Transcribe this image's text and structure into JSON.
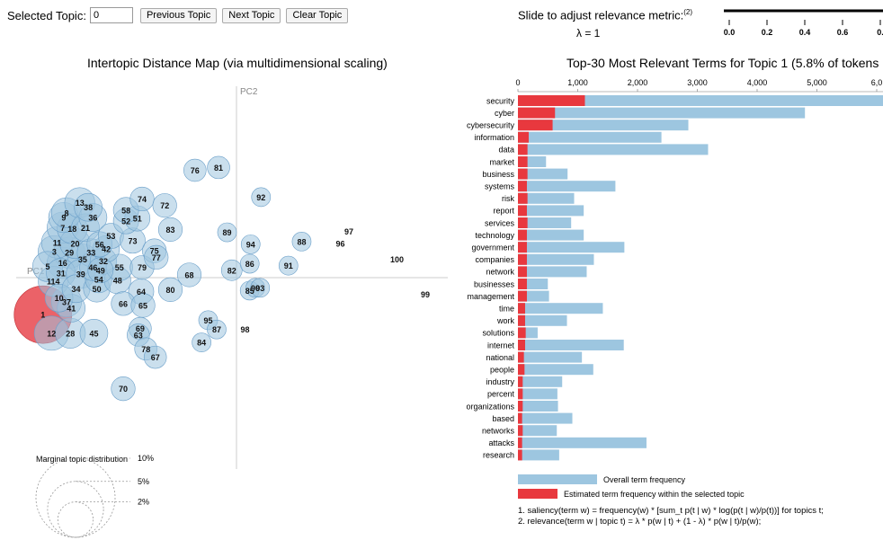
{
  "controls": {
    "selected_topic_label": "Selected Topic:",
    "selected_topic_value": "0",
    "prev_label": "Previous Topic",
    "next_label": "Next Topic",
    "clear_label": "Clear Topic"
  },
  "lambda": {
    "title": "Slide to adjust relevance metric:",
    "footnote_ref": "(2)",
    "value_label": "λ = 1",
    "value": 1,
    "ticks": [
      "0.0",
      "0.2",
      "0.4",
      "0.6",
      "0."
    ]
  },
  "colors": {
    "bubble_fill": "#9fc4df",
    "bubble_stroke": "#6a9fc9",
    "selected_fill": "#e8474d",
    "selected_stroke": "#c0272d",
    "overall_bar": "#9dc6e0",
    "topic_bar": "#e8383e"
  },
  "chart_data": [
    {
      "type": "scatter",
      "title": "Intertopic Distance Map (via multidimensional scaling)",
      "xlabel": "PC1",
      "ylabel": "PC2",
      "selected_topic": 1,
      "points": [
        {
          "id": "1",
          "x": -0.205,
          "y": -0.04,
          "size": 5.8
        },
        {
          "id": "12",
          "x": -0.196,
          "y": -0.06,
          "size": 1.6
        },
        {
          "id": "28",
          "x": -0.176,
          "y": -0.06,
          "size": 1.2
        },
        {
          "id": "45",
          "x": -0.151,
          "y": -0.06,
          "size": 1.0
        },
        {
          "id": "41",
          "x": -0.175,
          "y": -0.033,
          "size": 1.0
        },
        {
          "id": "37",
          "x": -0.18,
          "y": -0.026,
          "size": 1.2
        },
        {
          "id": "10",
          "x": -0.188,
          "y": -0.022,
          "size": 1.0
        },
        {
          "id": "50",
          "x": -0.148,
          "y": -0.012,
          "size": 0.9
        },
        {
          "id": "34",
          "x": -0.17,
          "y": -0.012,
          "size": 1.0
        },
        {
          "id": "114",
          "x": -0.194,
          "y": -0.004,
          "size": 1.2
        },
        {
          "id": "54",
          "x": -0.146,
          "y": -0.002,
          "size": 0.9
        },
        {
          "id": "48",
          "x": -0.126,
          "y": -0.003,
          "size": 0.9
        },
        {
          "id": "31",
          "x": -0.186,
          "y": 0.005,
          "size": 1.1
        },
        {
          "id": "39",
          "x": -0.165,
          "y": 0.004,
          "size": 1.1
        },
        {
          "id": "46",
          "x": -0.152,
          "y": 0.011,
          "size": 0.9
        },
        {
          "id": "49",
          "x": -0.144,
          "y": 0.008,
          "size": 0.8
        },
        {
          "id": "5",
          "x": -0.2,
          "y": 0.012,
          "size": 1.2
        },
        {
          "id": "16",
          "x": -0.184,
          "y": 0.016,
          "size": 1.3
        },
        {
          "id": "35",
          "x": -0.163,
          "y": 0.02,
          "size": 1.2
        },
        {
          "id": "32",
          "x": -0.141,
          "y": 0.018,
          "size": 0.9
        },
        {
          "id": "55",
          "x": -0.124,
          "y": 0.011,
          "size": 0.9
        },
        {
          "id": "79",
          "x": -0.1,
          "y": 0.011,
          "size": 0.7
        },
        {
          "id": "3",
          "x": -0.193,
          "y": 0.028,
          "size": 1.4
        },
        {
          "id": "29",
          "x": -0.177,
          "y": 0.027,
          "size": 1.3
        },
        {
          "id": "33",
          "x": -0.154,
          "y": 0.027,
          "size": 1.0
        },
        {
          "id": "42",
          "x": -0.138,
          "y": 0.031,
          "size": 0.9
        },
        {
          "id": "56",
          "x": -0.145,
          "y": 0.036,
          "size": 0.8
        },
        {
          "id": "11",
          "x": -0.19,
          "y": 0.038,
          "size": 1.3
        },
        {
          "id": "20",
          "x": -0.171,
          "y": 0.037,
          "size": 1.2
        },
        {
          "id": "53",
          "x": -0.133,
          "y": 0.045,
          "size": 0.8
        },
        {
          "id": "73",
          "x": -0.11,
          "y": 0.04,
          "size": 0.8
        },
        {
          "id": "75",
          "x": -0.087,
          "y": 0.029,
          "size": 0.7
        },
        {
          "id": "77",
          "x": -0.085,
          "y": 0.022,
          "size": 0.7
        },
        {
          "id": "7",
          "x": -0.184,
          "y": 0.054,
          "size": 1.3
        },
        {
          "id": "18",
          "x": -0.174,
          "y": 0.053,
          "size": 1.2
        },
        {
          "id": "21",
          "x": -0.16,
          "y": 0.054,
          "size": 1.0
        },
        {
          "id": "52",
          "x": -0.117,
          "y": 0.061,
          "size": 0.8
        },
        {
          "id": "51",
          "x": -0.105,
          "y": 0.064,
          "size": 0.8
        },
        {
          "id": "83",
          "x": -0.07,
          "y": 0.052,
          "size": 0.7
        },
        {
          "id": "9",
          "x": -0.183,
          "y": 0.065,
          "size": 1.2
        },
        {
          "id": "8",
          "x": -0.18,
          "y": 0.07,
          "size": 1.2
        },
        {
          "id": "36",
          "x": -0.152,
          "y": 0.065,
          "size": 1.0
        },
        {
          "id": "58",
          "x": -0.117,
          "y": 0.073,
          "size": 0.8
        },
        {
          "id": "38",
          "x": -0.157,
          "y": 0.076,
          "size": 1.0
        },
        {
          "id": "13",
          "x": -0.166,
          "y": 0.081,
          "size": 1.2
        },
        {
          "id": "74",
          "x": -0.1,
          "y": 0.085,
          "size": 0.7
        },
        {
          "id": "72",
          "x": -0.076,
          "y": 0.078,
          "size": 0.7
        },
        {
          "id": "64",
          "x": -0.101,
          "y": -0.015,
          "size": 0.8
        },
        {
          "id": "80",
          "x": -0.07,
          "y": -0.013,
          "size": 0.7
        },
        {
          "id": "66",
          "x": -0.12,
          "y": -0.028,
          "size": 0.7
        },
        {
          "id": "65",
          "x": -0.099,
          "y": -0.03,
          "size": 0.7
        },
        {
          "id": "68",
          "x": -0.05,
          "y": 0.003,
          "size": 0.7
        },
        {
          "id": "69",
          "x": -0.102,
          "y": -0.055,
          "size": 0.6
        },
        {
          "id": "63",
          "x": -0.104,
          "y": -0.062,
          "size": 0.6
        },
        {
          "id": "78",
          "x": -0.096,
          "y": -0.077,
          "size": 0.6
        },
        {
          "id": "67",
          "x": -0.086,
          "y": -0.086,
          "size": 0.6
        },
        {
          "id": "70",
          "x": -0.12,
          "y": -0.12,
          "size": 0.7
        },
        {
          "id": "76",
          "x": -0.044,
          "y": 0.116,
          "size": 0.6
        },
        {
          "id": "81",
          "x": -0.019,
          "y": 0.119,
          "size": 0.6
        },
        {
          "id": "92",
          "x": 0.026,
          "y": 0.087,
          "size": 0.4
        },
        {
          "id": "89",
          "x": -0.01,
          "y": 0.049,
          "size": 0.4
        },
        {
          "id": "94",
          "x": 0.015,
          "y": 0.036,
          "size": 0.4
        },
        {
          "id": "86",
          "x": 0.014,
          "y": 0.015,
          "size": 0.4
        },
        {
          "id": "82",
          "x": -0.005,
          "y": 0.008,
          "size": 0.5
        },
        {
          "id": "85",
          "x": 0.014,
          "y": -0.014,
          "size": 0.4
        },
        {
          "id": "90",
          "x": 0.02,
          "y": -0.011,
          "size": 0.4
        },
        {
          "id": "93",
          "x": 0.025,
          "y": -0.011,
          "size": 0.4
        },
        {
          "id": "88",
          "x": 0.069,
          "y": 0.039,
          "size": 0.4
        },
        {
          "id": "91",
          "x": 0.055,
          "y": 0.013,
          "size": 0.4
        },
        {
          "id": "96",
          "x": 0.11,
          "y": 0.037,
          "size": 0.3
        },
        {
          "id": "97",
          "x": 0.119,
          "y": 0.05,
          "size": 0.3
        },
        {
          "id": "100",
          "x": 0.17,
          "y": 0.02,
          "size": 0.2
        },
        {
          "id": "99",
          "x": 0.2,
          "y": -0.018,
          "size": 0.2
        },
        {
          "id": "95",
          "x": -0.03,
          "y": -0.046,
          "size": 0.4
        },
        {
          "id": "87",
          "x": -0.021,
          "y": -0.056,
          "size": 0.4
        },
        {
          "id": "98",
          "x": 0.009,
          "y": -0.056,
          "size": 0.3
        },
        {
          "id": "84",
          "x": -0.037,
          "y": -0.07,
          "size": 0.4
        }
      ],
      "size_legend": {
        "title": "Marginal topic distribution",
        "entries": [
          {
            "label": "2%",
            "value": 2
          },
          {
            "label": "5%",
            "value": 5
          },
          {
            "label": "10%",
            "value": 10
          }
        ]
      }
    },
    {
      "type": "bar",
      "title": "Top-30 Most Relevant Terms for Topic 1 (5.8% of tokens",
      "xlim": [
        0,
        6000
      ],
      "xticks": [
        "0",
        "1,000",
        "2,000",
        "3,000",
        "4,000",
        "5,000",
        "6,0"
      ],
      "categories": [
        "security",
        "cyber",
        "cybersecurity",
        "information",
        "data",
        "market",
        "business",
        "systems",
        "risk",
        "report",
        "services",
        "technology",
        "government",
        "companies",
        "network",
        "businesses",
        "management",
        "time",
        "work",
        "solutions",
        "internet",
        "national",
        "people",
        "industry",
        "percent",
        "organizations",
        "based",
        "networks",
        "attacks",
        "research"
      ],
      "series": [
        {
          "name": "Overall term frequency",
          "values": [
            6150,
            4800,
            2850,
            2400,
            3180,
            470,
            830,
            1630,
            940,
            1100,
            890,
            1100,
            1780,
            1270,
            1150,
            500,
            520,
            1420,
            820,
            330,
            1770,
            1070,
            1260,
            740,
            660,
            670,
            910,
            650,
            2150,
            690
          ]
        },
        {
          "name": "Estimated term frequency within the selected topic",
          "values": [
            1120,
            620,
            580,
            180,
            160,
            160,
            160,
            150,
            160,
            150,
            160,
            150,
            150,
            150,
            150,
            150,
            150,
            120,
            120,
            130,
            120,
            100,
            110,
            80,
            80,
            80,
            70,
            80,
            70,
            70
          ]
        }
      ]
    }
  ],
  "footnotes": [
    "1. saliency(term w) = frequency(w) * [sum_t p(t | w) * log(p(t | w)/p(t))] for topics t;",
    "2. relevance(term w | topic t) = λ * p(w | t) + (1 - λ) * p(w | t)/p(w);"
  ]
}
